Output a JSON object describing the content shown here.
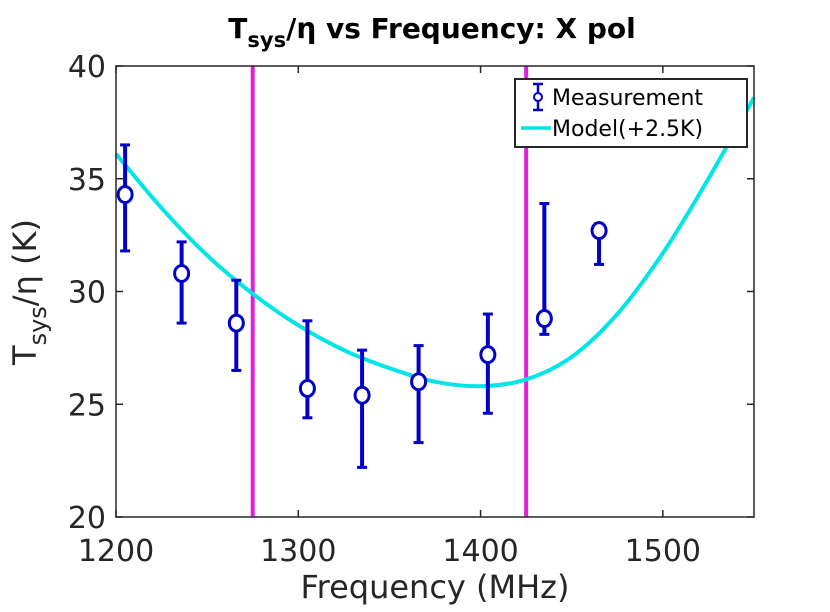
{
  "chart_data": {
    "type": "scatter",
    "title": {
      "prefix": "T",
      "subscript": "sys",
      "suffix": "/η vs Frequency: X pol"
    },
    "xlabel": "Frequency (MHz)",
    "ylabel": {
      "prefix": "T",
      "subscript": "sys",
      "suffix": "/η (K)"
    },
    "xlim": [
      1200,
      1550
    ],
    "ylim": [
      20,
      40
    ],
    "xticks": [
      1200,
      1300,
      1400,
      1500
    ],
    "yticks": [
      20,
      25,
      30,
      35,
      40
    ],
    "grid": false,
    "legend_position": "top-right",
    "series": [
      {
        "name": "Measurement",
        "kind": "errorbar",
        "color": "#0000c8",
        "marker": "circle",
        "x": [
          1205,
          1236,
          1266,
          1305,
          1335,
          1366,
          1404,
          1435,
          1465
        ],
        "y": [
          34.3,
          30.8,
          28.6,
          25.7,
          25.4,
          26.0,
          27.2,
          28.8,
          32.7
        ],
        "y_low": [
          31.8,
          28.6,
          26.5,
          24.4,
          22.2,
          23.3,
          24.6,
          28.1,
          31.2
        ],
        "y_high": [
          36.5,
          32.2,
          30.5,
          28.7,
          27.4,
          27.6,
          29.0,
          33.9,
          33.0
        ]
      },
      {
        "name": "Model(+2.5K)",
        "kind": "line",
        "color": "#00e5e5",
        "x": [
          1200,
          1225,
          1250,
          1275,
          1300,
          1325,
          1350,
          1375,
          1400,
          1425,
          1450,
          1475,
          1500,
          1525,
          1550
        ],
        "y": [
          36.1,
          33.7,
          31.6,
          29.9,
          28.5,
          27.4,
          26.6,
          26.0,
          25.8,
          26.1,
          27.1,
          29.0,
          31.7,
          35.0,
          38.6
        ]
      }
    ],
    "vertical_lines": {
      "color": "#e020e0",
      "x": [
        1275,
        1425
      ]
    }
  }
}
